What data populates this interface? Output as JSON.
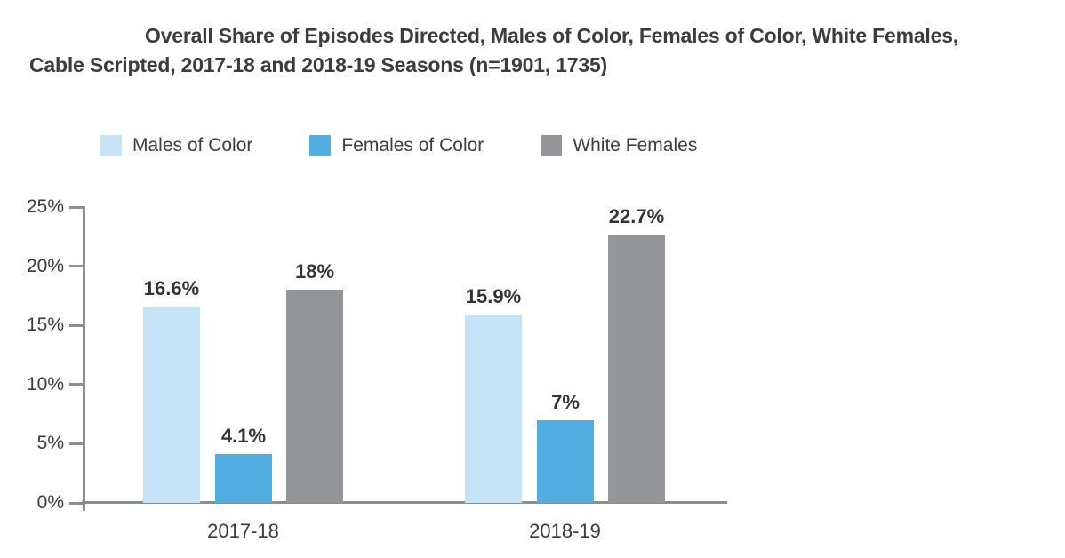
{
  "title": {
    "line1": "Overall Share of Episodes Directed, Males of Color, Females of Color, White Females,",
    "line2": "Cable Scripted, 2017-18 and 2018-19 Seasons (n=1901, 1735)"
  },
  "legend": [
    {
      "label": "Males of Color",
      "color": "#c5e3f6"
    },
    {
      "label": "Females of Color",
      "color": "#52ade0"
    },
    {
      "label": "White Females",
      "color": "#939598"
    }
  ],
  "colors": {
    "males_of_color": "#c5e3f6",
    "females_of_color": "#52ade0",
    "white_females": "#939598",
    "axis": "#8b8d90",
    "text": "#3b3b3d"
  },
  "chart_data": {
    "type": "bar",
    "title": "Overall Share of Episodes Directed, Males of Color, Females of Color, White Females, Cable Scripted, 2017-18 and 2018-19 Seasons (n=1901, 1735)",
    "categories": [
      "2017-18",
      "2018-19"
    ],
    "series": [
      {
        "name": "Males of Color",
        "color": "#c5e3f6",
        "values": [
          16.6,
          15.9
        ],
        "labels": [
          "16.6%",
          "15.9%"
        ]
      },
      {
        "name": "Females of Color",
        "color": "#52ade0",
        "values": [
          4.1,
          7
        ],
        "labels": [
          "4.1%",
          "7%"
        ]
      },
      {
        "name": "White Females",
        "color": "#939598",
        "values": [
          18,
          22.7
        ],
        "labels": [
          "18%",
          "22.7%"
        ]
      }
    ],
    "xlabel": "",
    "ylabel": "",
    "ylim": [
      0,
      25
    ],
    "ytick_labels": [
      "0%",
      "5%",
      "10%",
      "15%",
      "20%",
      "25%"
    ],
    "ytick_values": [
      0,
      5,
      10,
      15,
      20,
      25
    ],
    "grid": false,
    "legend_position": "top-left"
  }
}
